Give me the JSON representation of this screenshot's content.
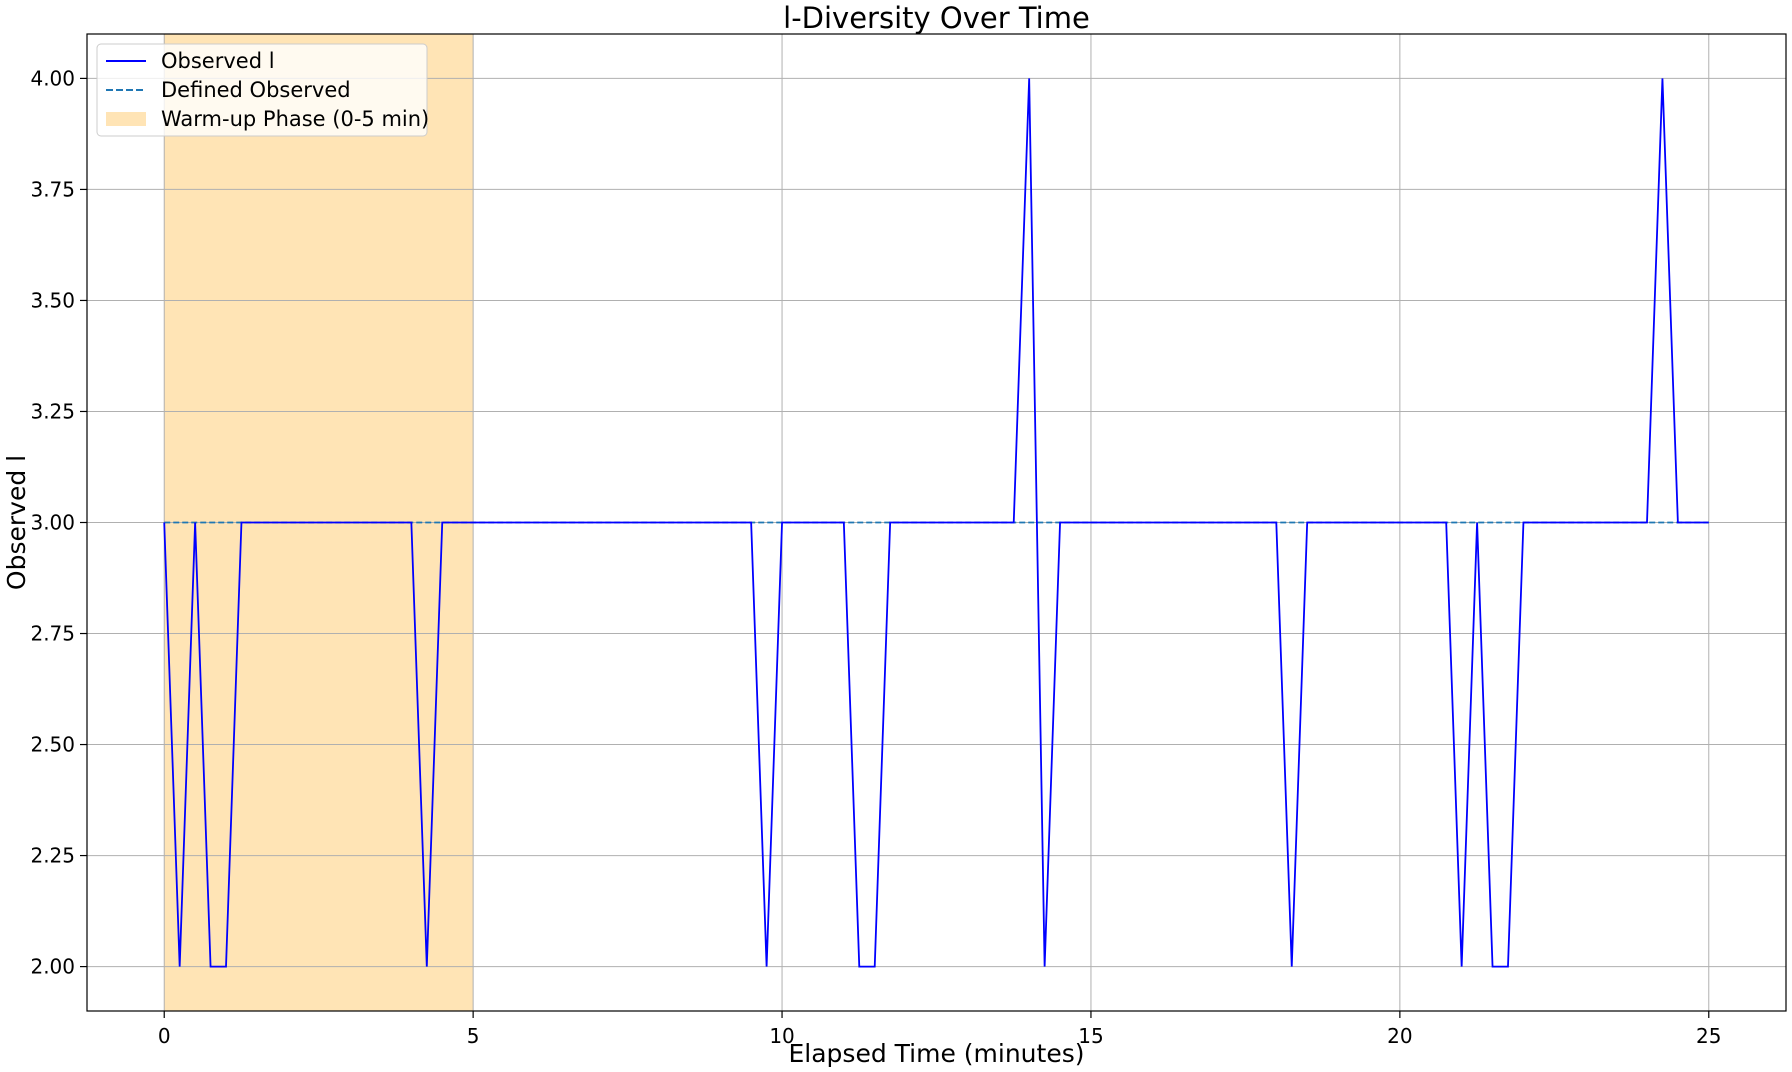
{
  "chart_data": {
    "type": "line",
    "title": "l-Diversity Over Time",
    "xlabel": "Elapsed Time (minutes)",
    "ylabel": "Observed l",
    "xlim": [
      -1.25,
      26.25
    ],
    "ylim": [
      1.9,
      4.1
    ],
    "xticks": [
      0,
      5,
      10,
      15,
      20,
      25
    ],
    "yticks": [
      2.0,
      2.25,
      2.5,
      2.75,
      3.0,
      3.25,
      3.5,
      3.75,
      4.0
    ],
    "xtick_labels": [
      "0",
      "5",
      "10",
      "15",
      "20",
      "25"
    ],
    "ytick_labels": [
      "2.00",
      "2.25",
      "2.50",
      "2.75",
      "3.00",
      "3.25",
      "3.50",
      "3.75",
      "4.00"
    ],
    "grid": true,
    "legend_position": "top-left",
    "series": [
      {
        "name": "Observed l",
        "color": "#0000ff",
        "style": "solid",
        "x": [
          0,
          0.25,
          0.5,
          0.75,
          1.0,
          1.25,
          1.5,
          1.75,
          2.0,
          2.25,
          2.5,
          2.75,
          3.0,
          3.25,
          3.5,
          3.75,
          4.0,
          4.25,
          4.5,
          4.75,
          5.0,
          5.25,
          5.5,
          5.75,
          6.0,
          6.25,
          6.5,
          6.75,
          7.0,
          7.25,
          7.5,
          7.75,
          8.0,
          8.25,
          8.5,
          8.75,
          9.0,
          9.25,
          9.5,
          9.75,
          10.0,
          10.25,
          10.5,
          10.75,
          11.0,
          11.25,
          11.5,
          11.75,
          12.0,
          12.25,
          12.5,
          12.75,
          13.0,
          13.25,
          13.5,
          13.75,
          14.0,
          14.25,
          14.5,
          14.75,
          15.0,
          15.25,
          15.5,
          15.75,
          16.0,
          16.25,
          16.5,
          16.75,
          17.0,
          17.25,
          17.5,
          17.75,
          18.0,
          18.25,
          18.5,
          18.75,
          19.0,
          19.25,
          19.5,
          19.75,
          20.0,
          20.25,
          20.5,
          20.75,
          21.0,
          21.25,
          21.5,
          21.75,
          22.0,
          22.25,
          22.5,
          22.75,
          23.0,
          23.25,
          23.5,
          23.75,
          24.0,
          24.25,
          24.5,
          24.75,
          25.0
        ],
        "y": [
          3,
          2,
          3,
          2,
          2,
          3,
          3,
          3,
          3,
          3,
          3,
          3,
          3,
          3,
          3,
          3,
          3,
          2,
          3,
          3,
          3,
          3,
          3,
          3,
          3,
          3,
          3,
          3,
          3,
          3,
          3,
          3,
          3,
          3,
          3,
          3,
          3,
          3,
          3,
          2,
          3,
          3,
          3,
          3,
          3,
          2,
          2,
          3,
          3,
          3,
          3,
          3,
          3,
          3,
          3,
          3,
          4,
          2,
          3,
          3,
          3,
          3,
          3,
          3,
          3,
          3,
          3,
          3,
          3,
          3,
          3,
          3,
          3,
          2,
          3,
          3,
          3,
          3,
          3,
          3,
          3,
          3,
          3,
          3,
          2,
          3,
          2,
          2,
          3,
          3,
          3,
          3,
          3,
          3,
          3,
          3,
          3,
          4,
          3,
          3,
          3
        ]
      },
      {
        "name": "Defined Observed",
        "color": "#1f77b4",
        "style": "dashed",
        "x": [
          0,
          25
        ],
        "y": [
          3,
          3
        ]
      }
    ],
    "shaded_regions": [
      {
        "name": "Warm-up Phase (0-5 min)",
        "x_start": 0,
        "x_end": 5,
        "color": "#ffe4b5",
        "opacity": 1.0
      }
    ]
  }
}
